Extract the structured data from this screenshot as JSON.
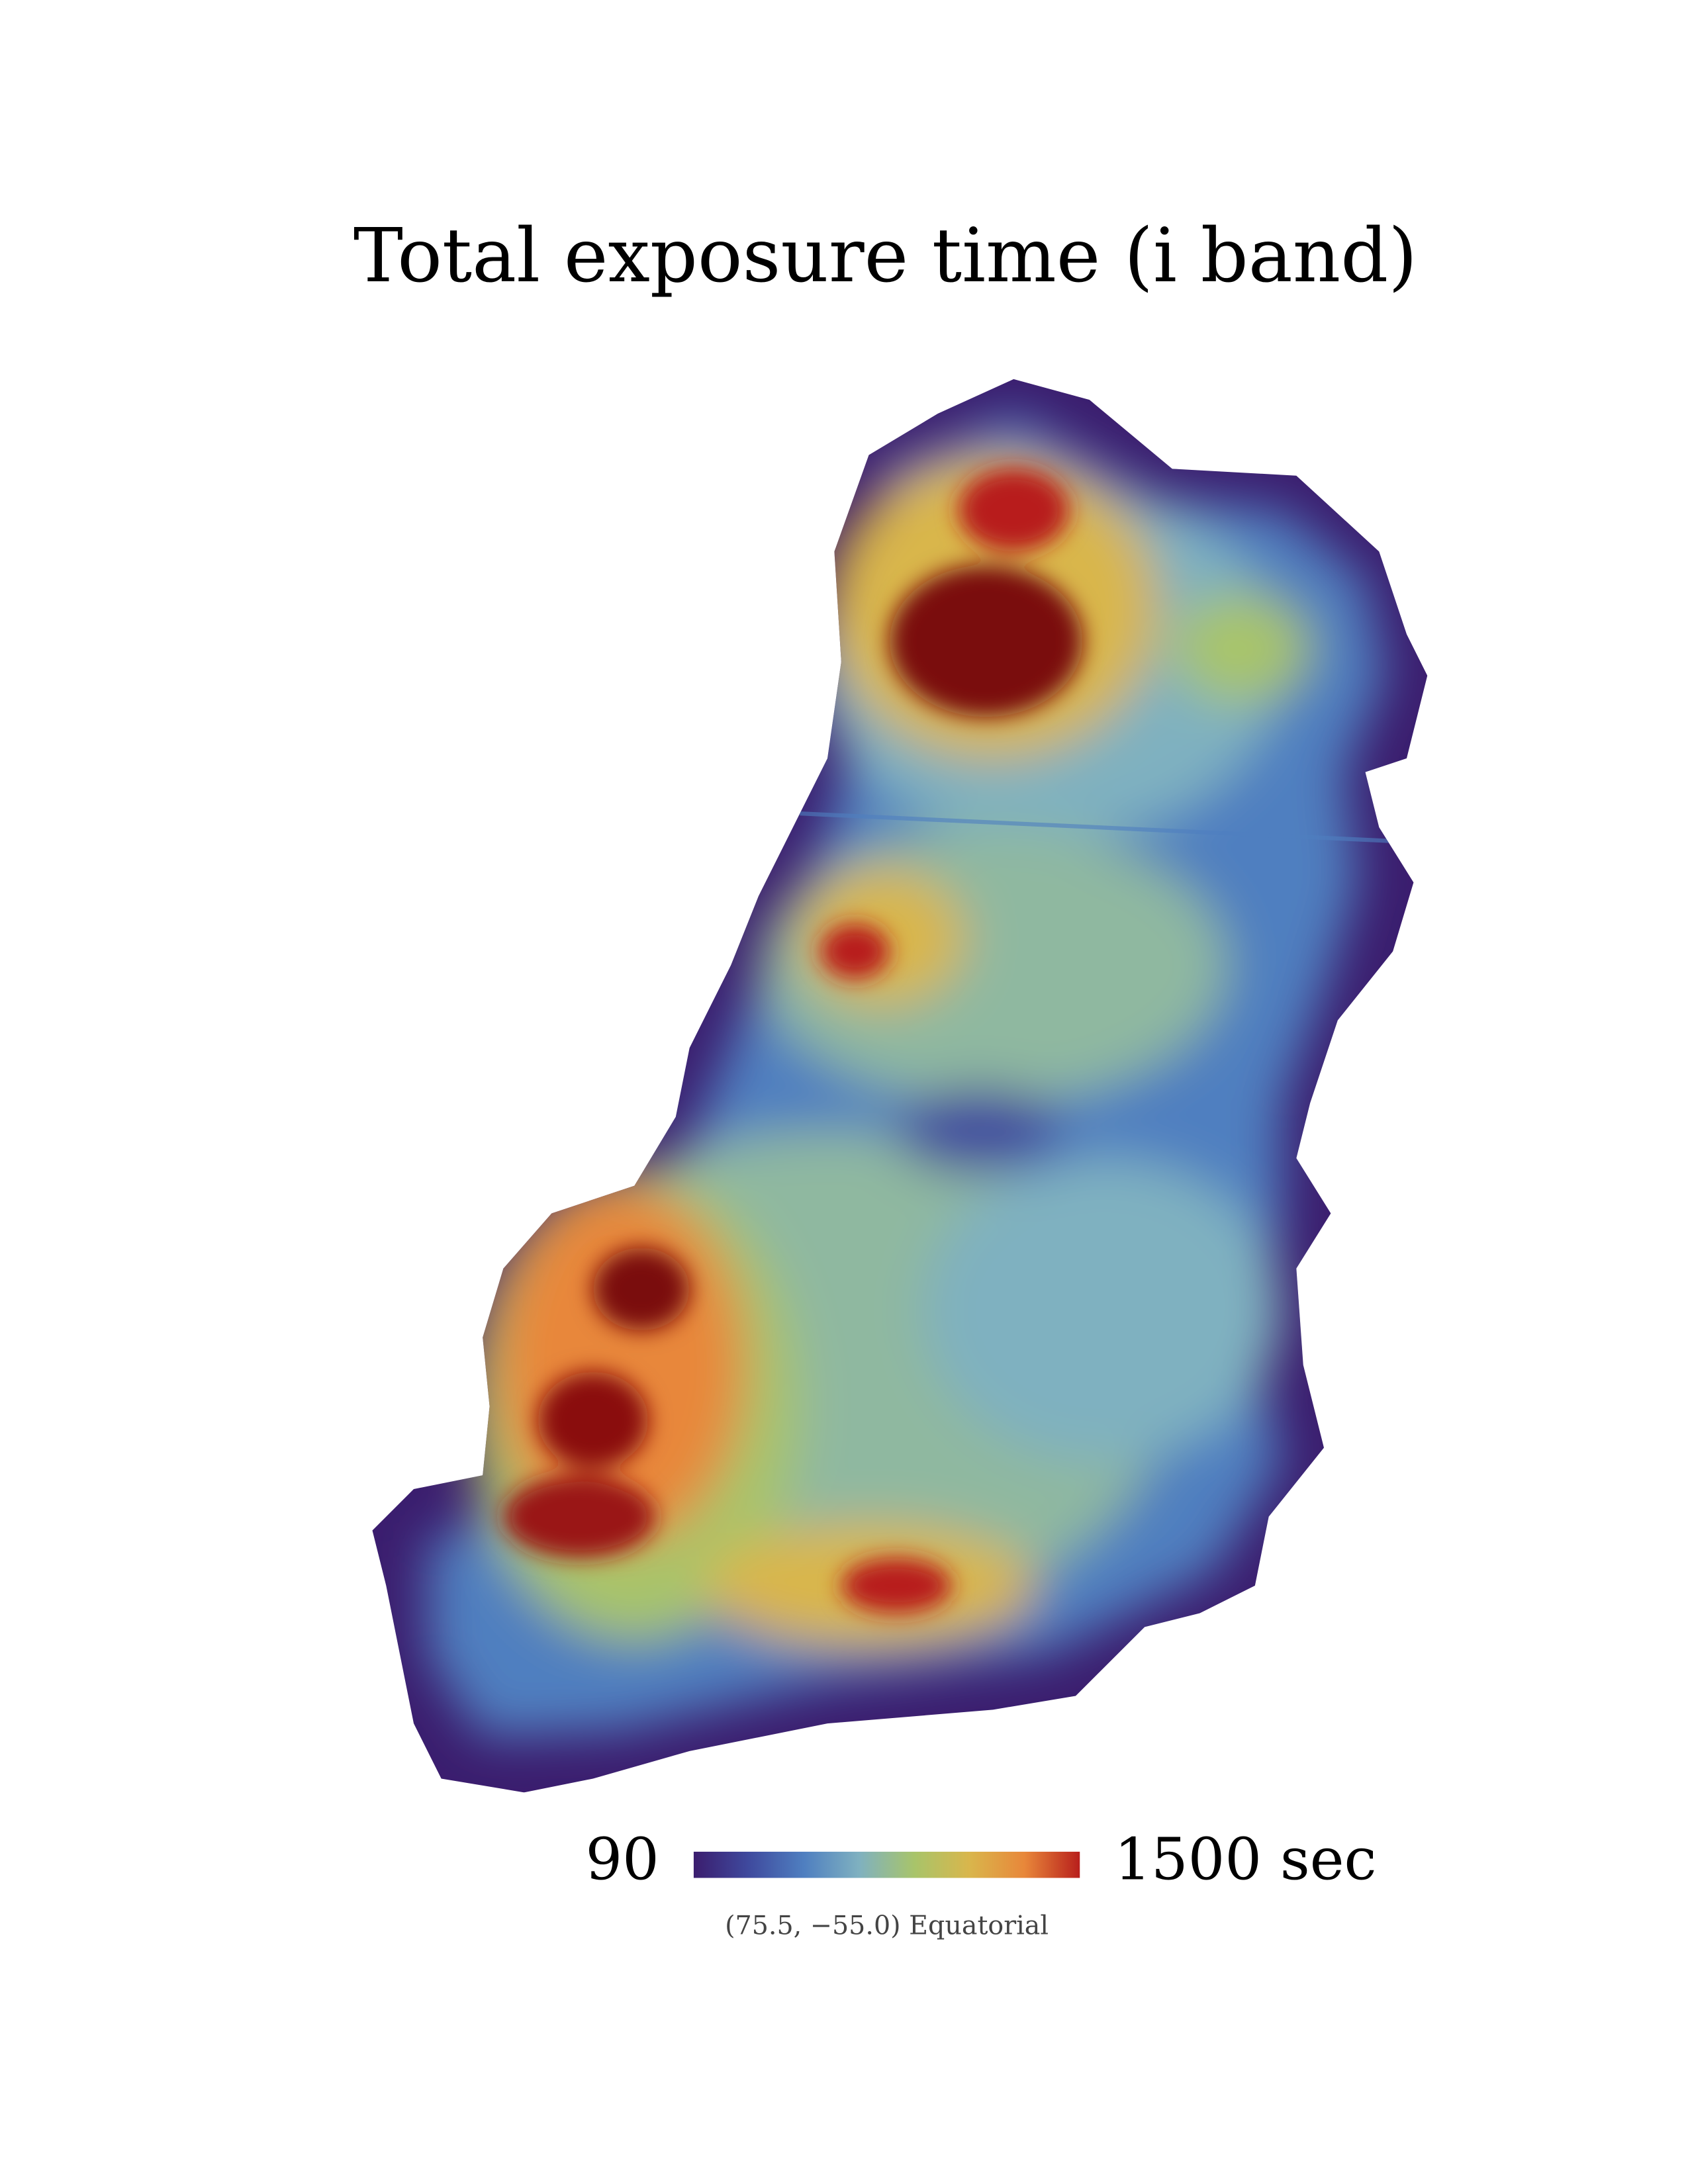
{
  "chart_data": {
    "type": "map",
    "title": "Total exposure time (i band)",
    "colorbar": {
      "ticks": [
        90,
        {
          "value": 1500,
          "label": "1500 sec"
        }
      ],
      "colors": [
        "#3b1d6e",
        "#3f4a9e",
        "#4f7fc0",
        "#7fb1c0",
        "#a8c46a",
        "#d9b64c",
        "#e8873a",
        "#b81f1c"
      ]
    },
    "annotation": "(75.5, −55.0) Equatorial"
  }
}
